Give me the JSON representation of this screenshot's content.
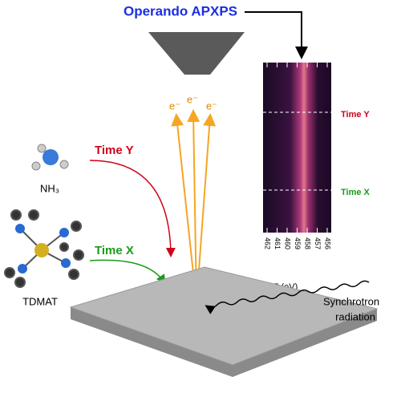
{
  "title": "Operando APXPS",
  "electrons": [
    "e⁻",
    "e⁻",
    "e⁻"
  ],
  "precursors": {
    "nh3": "NH₃",
    "tdmat": "TDMAT"
  },
  "pulses": {
    "time_y": "Time Y",
    "time_x": "Time X"
  },
  "spectrum": {
    "markers": [
      "Time Y",
      "Time X"
    ],
    "xticks": [
      "462",
      "461",
      "460",
      "459",
      "458",
      "457",
      "456"
    ],
    "xlabel": "BE (eV)"
  },
  "source": [
    "Synchrotron",
    "radiation"
  ]
}
